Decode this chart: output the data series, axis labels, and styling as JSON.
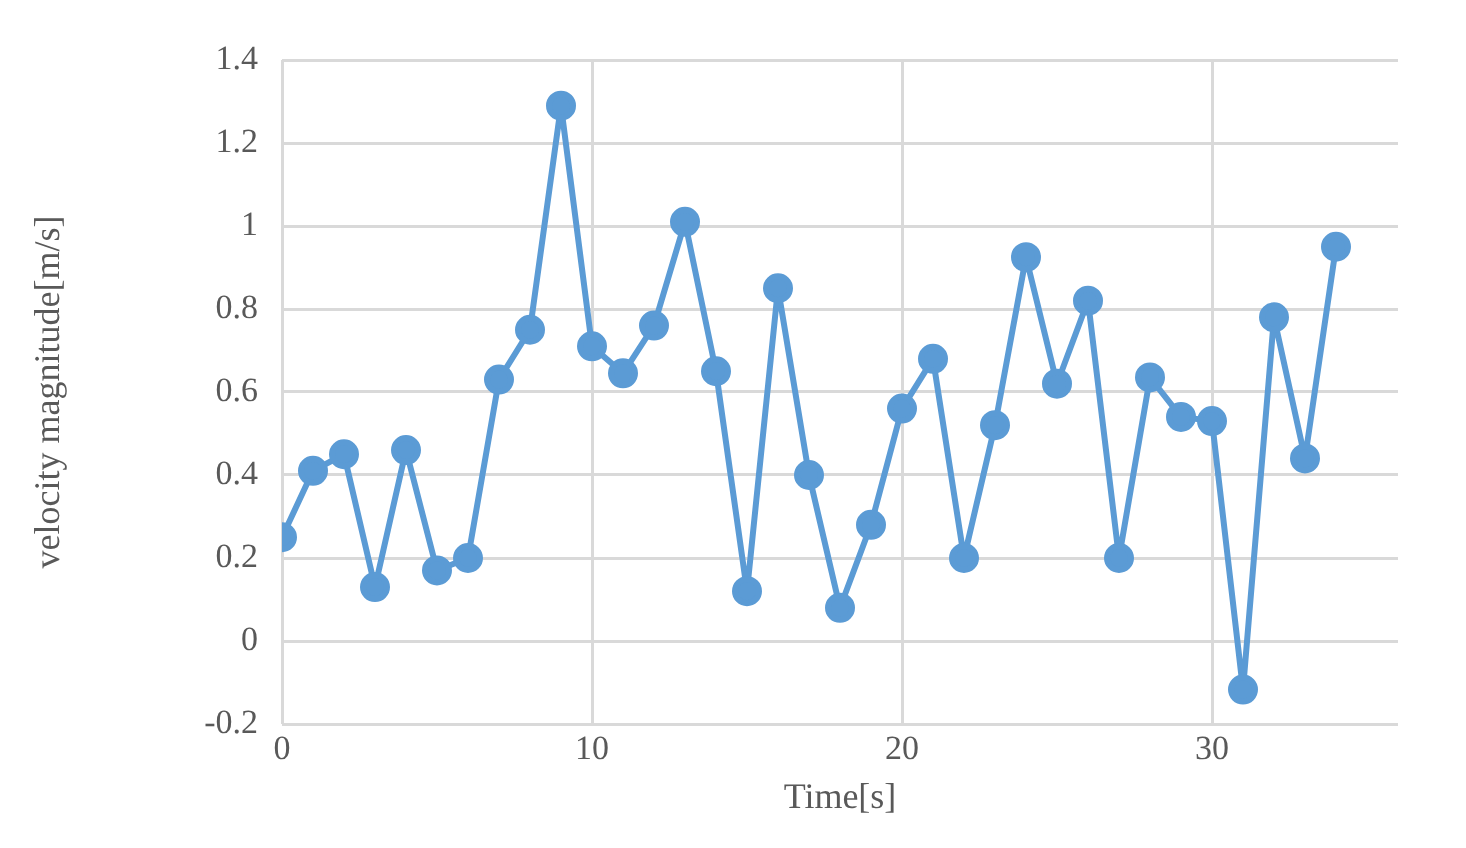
{
  "chart_data": {
    "type": "line",
    "xlabel": "Time[s]",
    "ylabel": "velocity magnitude[m/s]",
    "x": [
      0,
      1,
      2,
      3,
      4,
      5,
      6,
      7,
      8,
      9,
      10,
      11,
      12,
      13,
      14,
      15,
      16,
      17,
      18,
      19,
      20,
      21,
      22,
      23,
      24,
      25,
      26,
      27,
      28,
      29,
      30,
      31,
      32,
      33,
      34
    ],
    "series": [
      {
        "color": "#5b9bd5",
        "values": [
          0.25,
          0.41,
          0.45,
          0.13,
          0.46,
          0.17,
          0.2,
          0.63,
          0.75,
          1.29,
          0.71,
          0.645,
          0.76,
          1.01,
          0.65,
          0.12,
          0.85,
          0.4,
          0.08,
          0.28,
          0.56,
          0.68,
          0.2,
          0.52,
          0.925,
          0.62,
          0.82,
          0.2,
          0.635,
          0.54,
          0.53,
          -0.117,
          0.78,
          0.44,
          0.95
        ]
      }
    ],
    "xlim": [
      0,
      36
    ],
    "xticks": [
      0,
      10,
      20,
      30
    ],
    "ylim": [
      -0.2,
      1.4
    ],
    "yticks": [
      -0.2,
      0,
      0.2,
      0.4,
      0.6,
      0.8,
      1,
      1.2,
      1.4
    ],
    "grid": true,
    "legend": false,
    "marker": "circle",
    "line_style": "solid"
  }
}
